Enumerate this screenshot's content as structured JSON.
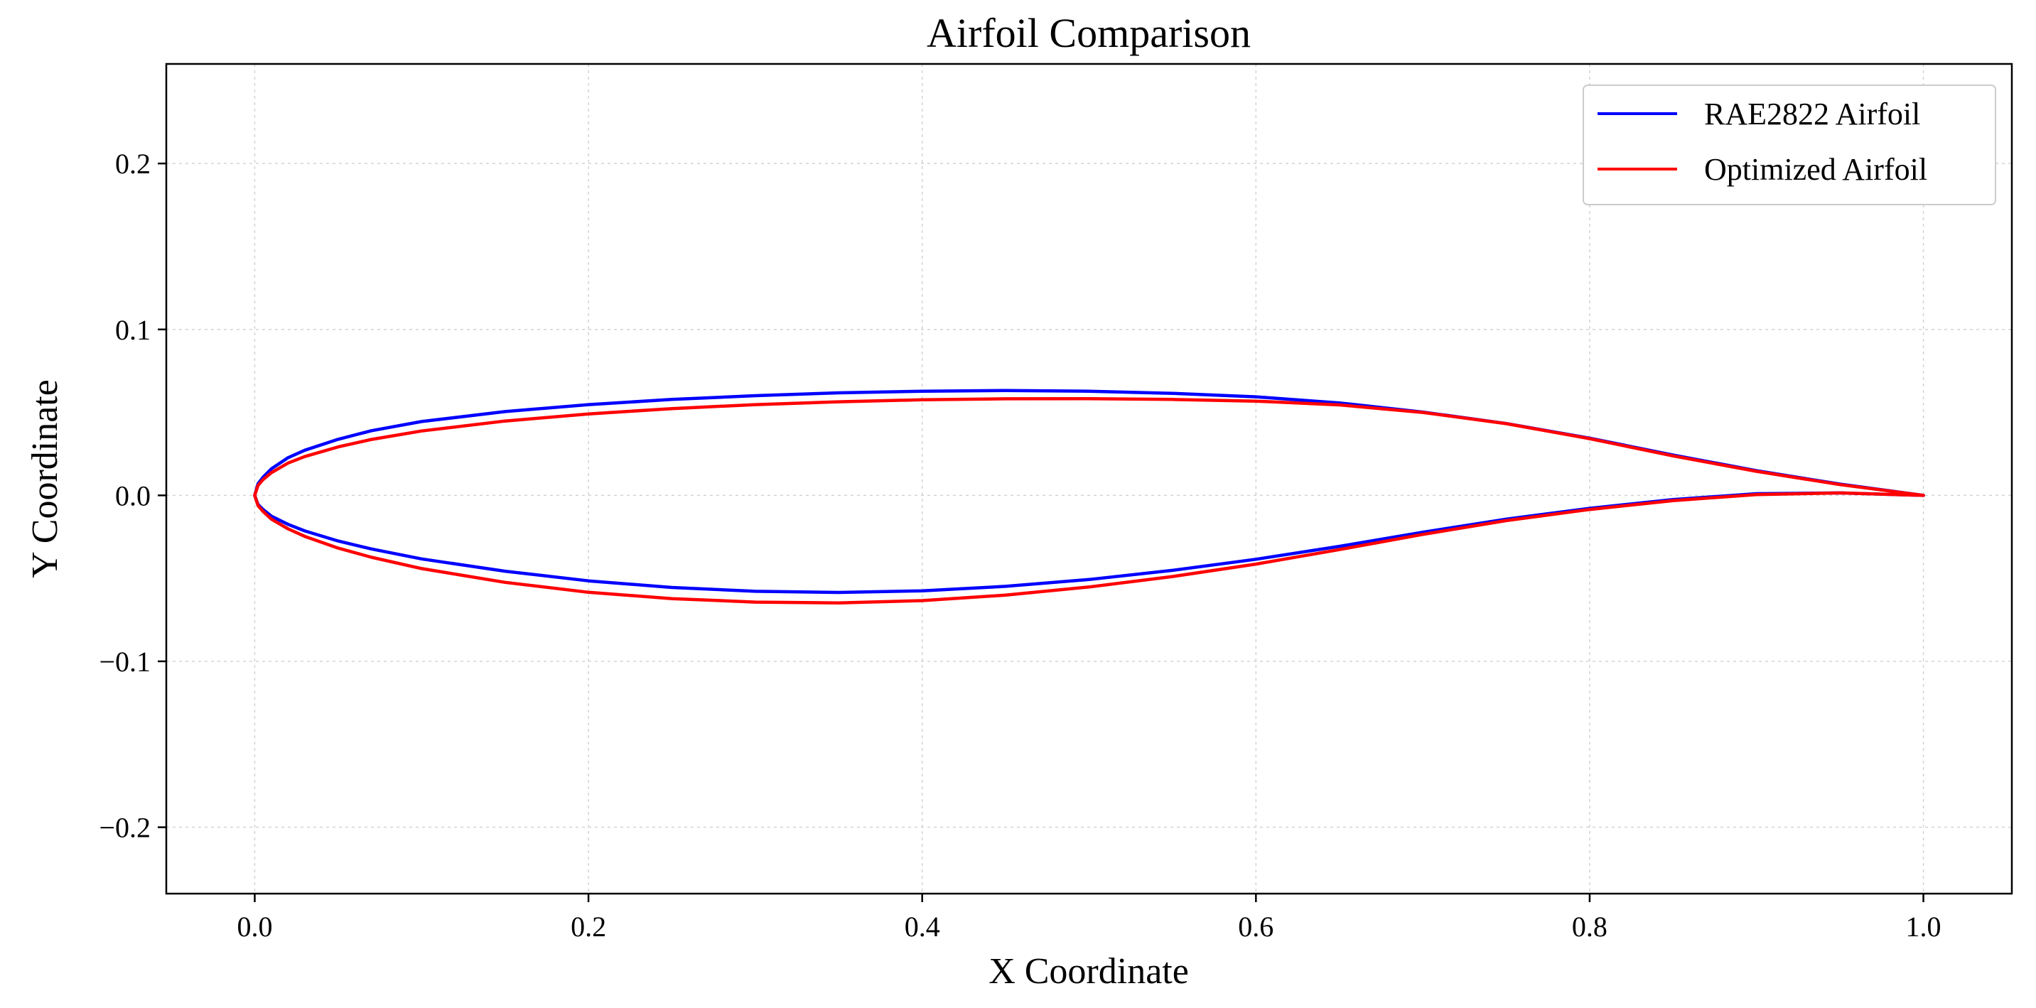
{
  "chart_data": {
    "type": "line",
    "title": "Airfoil Comparison",
    "xlabel": "X Coordinate",
    "ylabel": "Y Coordinate",
    "xlim": [
      -0.053,
      1.053
    ],
    "ylim": [
      -0.24,
      0.26
    ],
    "grid": true,
    "legend_position": "top-right",
    "x_ticks": [
      0.0,
      0.2,
      0.4,
      0.6,
      0.8,
      1.0
    ],
    "x_tick_labels": [
      "0.0",
      "0.2",
      "0.4",
      "0.6",
      "0.8",
      "1.0"
    ],
    "y_ticks": [
      0.2,
      0.1,
      0.0,
      -0.1,
      -0.2
    ],
    "y_tick_labels": [
      "0.2",
      "0.1",
      "0.0",
      "−0.1",
      "−0.2"
    ],
    "series": [
      {
        "name": "RAE2822 Airfoil",
        "color": "#0000ff",
        "upper": [
          [
            1.0,
            0.0
          ],
          [
            0.95,
            0.0068
          ],
          [
            0.9,
            0.0149
          ],
          [
            0.85,
            0.0243
          ],
          [
            0.8,
            0.0345
          ],
          [
            0.75,
            0.0433
          ],
          [
            0.7,
            0.0502
          ],
          [
            0.65,
            0.0557
          ],
          [
            0.6,
            0.0594
          ],
          [
            0.55,
            0.0615
          ],
          [
            0.5,
            0.0628
          ],
          [
            0.45,
            0.0632
          ],
          [
            0.4,
            0.0628
          ],
          [
            0.35,
            0.0618
          ],
          [
            0.3,
            0.0601
          ],
          [
            0.25,
            0.0578
          ],
          [
            0.2,
            0.0547
          ],
          [
            0.15,
            0.0505
          ],
          [
            0.1,
            0.0445
          ],
          [
            0.07,
            0.039
          ],
          [
            0.05,
            0.0338
          ],
          [
            0.03,
            0.0272
          ],
          [
            0.02,
            0.0227
          ],
          [
            0.01,
            0.016
          ],
          [
            0.005,
            0.011
          ],
          [
            0.002,
            0.007
          ],
          [
            0.0,
            0.0
          ]
        ],
        "lower": [
          [
            0.0,
            0.0
          ],
          [
            0.002,
            -0.0055
          ],
          [
            0.005,
            -0.0085
          ],
          [
            0.01,
            -0.0125
          ],
          [
            0.02,
            -0.0175
          ],
          [
            0.03,
            -0.0214
          ],
          [
            0.05,
            -0.0275
          ],
          [
            0.07,
            -0.0323
          ],
          [
            0.1,
            -0.0383
          ],
          [
            0.15,
            -0.0457
          ],
          [
            0.2,
            -0.0515
          ],
          [
            0.25,
            -0.0555
          ],
          [
            0.3,
            -0.0578
          ],
          [
            0.35,
            -0.0585
          ],
          [
            0.4,
            -0.0575
          ],
          [
            0.45,
            -0.0548
          ],
          [
            0.5,
            -0.0507
          ],
          [
            0.55,
            -0.0452
          ],
          [
            0.6,
            -0.0385
          ],
          [
            0.65,
            -0.0307
          ],
          [
            0.7,
            -0.0222
          ],
          [
            0.75,
            -0.0143
          ],
          [
            0.8,
            -0.0078
          ],
          [
            0.85,
            -0.0025
          ],
          [
            0.9,
            0.001
          ],
          [
            0.95,
            0.0015
          ],
          [
            1.0,
            0.0
          ]
        ]
      },
      {
        "name": "Optimized Airfoil",
        "color": "#ff0000",
        "upper": [
          [
            1.0,
            0.0
          ],
          [
            0.95,
            0.0065
          ],
          [
            0.9,
            0.0145
          ],
          [
            0.85,
            0.0238
          ],
          [
            0.8,
            0.0342
          ],
          [
            0.75,
            0.0432
          ],
          [
            0.7,
            0.05
          ],
          [
            0.65,
            0.0545
          ],
          [
            0.6,
            0.0568
          ],
          [
            0.55,
            0.0578
          ],
          [
            0.5,
            0.0583
          ],
          [
            0.45,
            0.0582
          ],
          [
            0.4,
            0.0576
          ],
          [
            0.35,
            0.0564
          ],
          [
            0.3,
            0.0547
          ],
          [
            0.25,
            0.0523
          ],
          [
            0.2,
            0.0491
          ],
          [
            0.15,
            0.0448
          ],
          [
            0.1,
            0.0388
          ],
          [
            0.07,
            0.0337
          ],
          [
            0.05,
            0.0292
          ],
          [
            0.03,
            0.0234
          ],
          [
            0.02,
            0.0195
          ],
          [
            0.01,
            0.0137
          ],
          [
            0.005,
            0.0095
          ],
          [
            0.002,
            0.006
          ],
          [
            0.0,
            0.0
          ]
        ],
        "lower": [
          [
            0.0,
            0.0
          ],
          [
            0.002,
            -0.0062
          ],
          [
            0.005,
            -0.0097
          ],
          [
            0.01,
            -0.0143
          ],
          [
            0.02,
            -0.0202
          ],
          [
            0.03,
            -0.0247
          ],
          [
            0.05,
            -0.0318
          ],
          [
            0.07,
            -0.0373
          ],
          [
            0.1,
            -0.0441
          ],
          [
            0.15,
            -0.0524
          ],
          [
            0.2,
            -0.0584
          ],
          [
            0.25,
            -0.0622
          ],
          [
            0.3,
            -0.0643
          ],
          [
            0.35,
            -0.0648
          ],
          [
            0.4,
            -0.0634
          ],
          [
            0.45,
            -0.0601
          ],
          [
            0.5,
            -0.0552
          ],
          [
            0.55,
            -0.0489
          ],
          [
            0.6,
            -0.0414
          ],
          [
            0.65,
            -0.0327
          ],
          [
            0.7,
            -0.0235
          ],
          [
            0.75,
            -0.0152
          ],
          [
            0.8,
            -0.0085
          ],
          [
            0.85,
            -0.0032
          ],
          [
            0.9,
            0.0005
          ],
          [
            0.95,
            0.0015
          ],
          [
            1.0,
            0.0
          ]
        ]
      }
    ]
  }
}
